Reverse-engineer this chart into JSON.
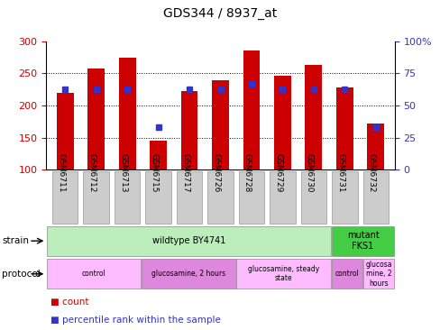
{
  "title": "GDS344 / 8937_at",
  "samples": [
    "GSM6711",
    "GSM6712",
    "GSM6713",
    "GSM6715",
    "GSM6717",
    "GSM6726",
    "GSM6728",
    "GSM6729",
    "GSM6730",
    "GSM6731",
    "GSM6732"
  ],
  "counts": [
    220,
    257,
    274,
    145,
    223,
    240,
    285,
    247,
    263,
    228,
    172
  ],
  "percentiles": [
    63,
    63,
    63,
    33,
    63,
    63,
    67,
    63,
    63,
    63,
    33
  ],
  "ylim_left": [
    100,
    300
  ],
  "ylim_right": [
    0,
    100
  ],
  "yticks_left": [
    100,
    150,
    200,
    250,
    300
  ],
  "yticks_right": [
    0,
    25,
    50,
    75,
    100
  ],
  "yticklabels_right": [
    "0",
    "25",
    "50",
    "75",
    "100%"
  ],
  "bar_color": "#cc0000",
  "dot_color": "#3333cc",
  "background_color": "#ffffff",
  "strain_groups": [
    {
      "label": "wildtype BY4741",
      "start": 0,
      "end": 9,
      "color": "#bbeebb"
    },
    {
      "label": "mutant\nFKS1",
      "start": 9,
      "end": 11,
      "color": "#44cc44"
    }
  ],
  "protocol_groups": [
    {
      "label": "control",
      "start": 0,
      "end": 3,
      "color": "#ffbbff"
    },
    {
      "label": "glucosamine, 2 hours",
      "start": 3,
      "end": 6,
      "color": "#dd88dd"
    },
    {
      "label": "glucosamine, steady\nstate",
      "start": 6,
      "end": 9,
      "color": "#ffbbff"
    },
    {
      "label": "control",
      "start": 9,
      "end": 10,
      "color": "#dd88dd"
    },
    {
      "label": "glucosa\nmine, 2\nhours",
      "start": 10,
      "end": 11,
      "color": "#ffbbff"
    }
  ],
  "red_color": "#cc0000",
  "blue_color": "#3333cc",
  "tick_label_bg": "#cccccc",
  "legend_items": [
    {
      "label": "count",
      "color": "#cc0000"
    },
    {
      "label": "percentile rank within the sample",
      "color": "#3333cc"
    }
  ]
}
